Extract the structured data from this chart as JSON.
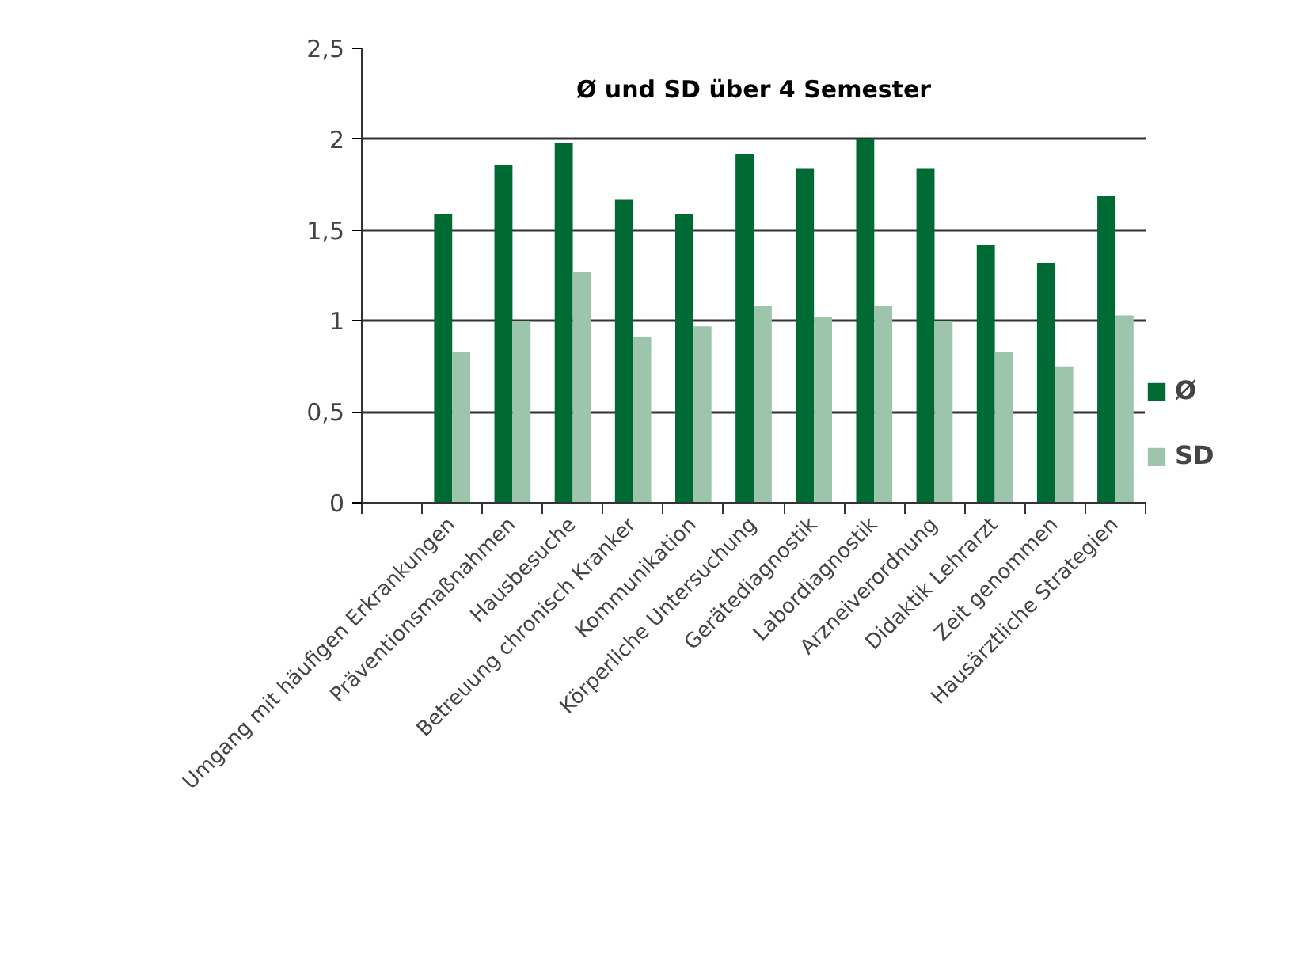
{
  "chart_data": {
    "type": "bar",
    "title": "Ø und SD über 4 Semester",
    "categories": [
      null,
      "Umgang mit häufigen Erkrankungen",
      "Präventionsmaßnahmen",
      "Hausbesuche",
      "Betreuung chronisch Kranker",
      "Kommunikation",
      "Körperliche Untersuchung",
      "Gerätediagnostik",
      "Labordiagnostik",
      "Arzneiverordnung",
      "Didaktik Lehrarzt",
      "Zeit genommen",
      "Hausärztliche Strategien"
    ],
    "series": [
      {
        "name": "Ø",
        "color": "#006a35",
        "values": [
          null,
          1.59,
          1.86,
          1.98,
          1.67,
          1.59,
          1.92,
          1.84,
          2.0,
          1.84,
          1.42,
          1.32,
          1.69
        ]
      },
      {
        "name": "SD",
        "color": "#9cc5ac",
        "values": [
          null,
          0.83,
          1.0,
          1.27,
          0.91,
          0.97,
          1.08,
          1.02,
          1.08,
          1.0,
          0.83,
          0.75,
          1.03
        ]
      }
    ],
    "ylim": [
      0,
      2.5
    ],
    "yticks": [
      {
        "value": 0,
        "label": "0"
      },
      {
        "value": 0.5,
        "label": "0,5"
      },
      {
        "value": 1,
        "label": "1"
      },
      {
        "value": 1.5,
        "label": "1,5"
      },
      {
        "value": 2,
        "label": "2"
      },
      {
        "value": 2.5,
        "label": "2,5"
      }
    ],
    "grid": "y",
    "legend": "right"
  }
}
